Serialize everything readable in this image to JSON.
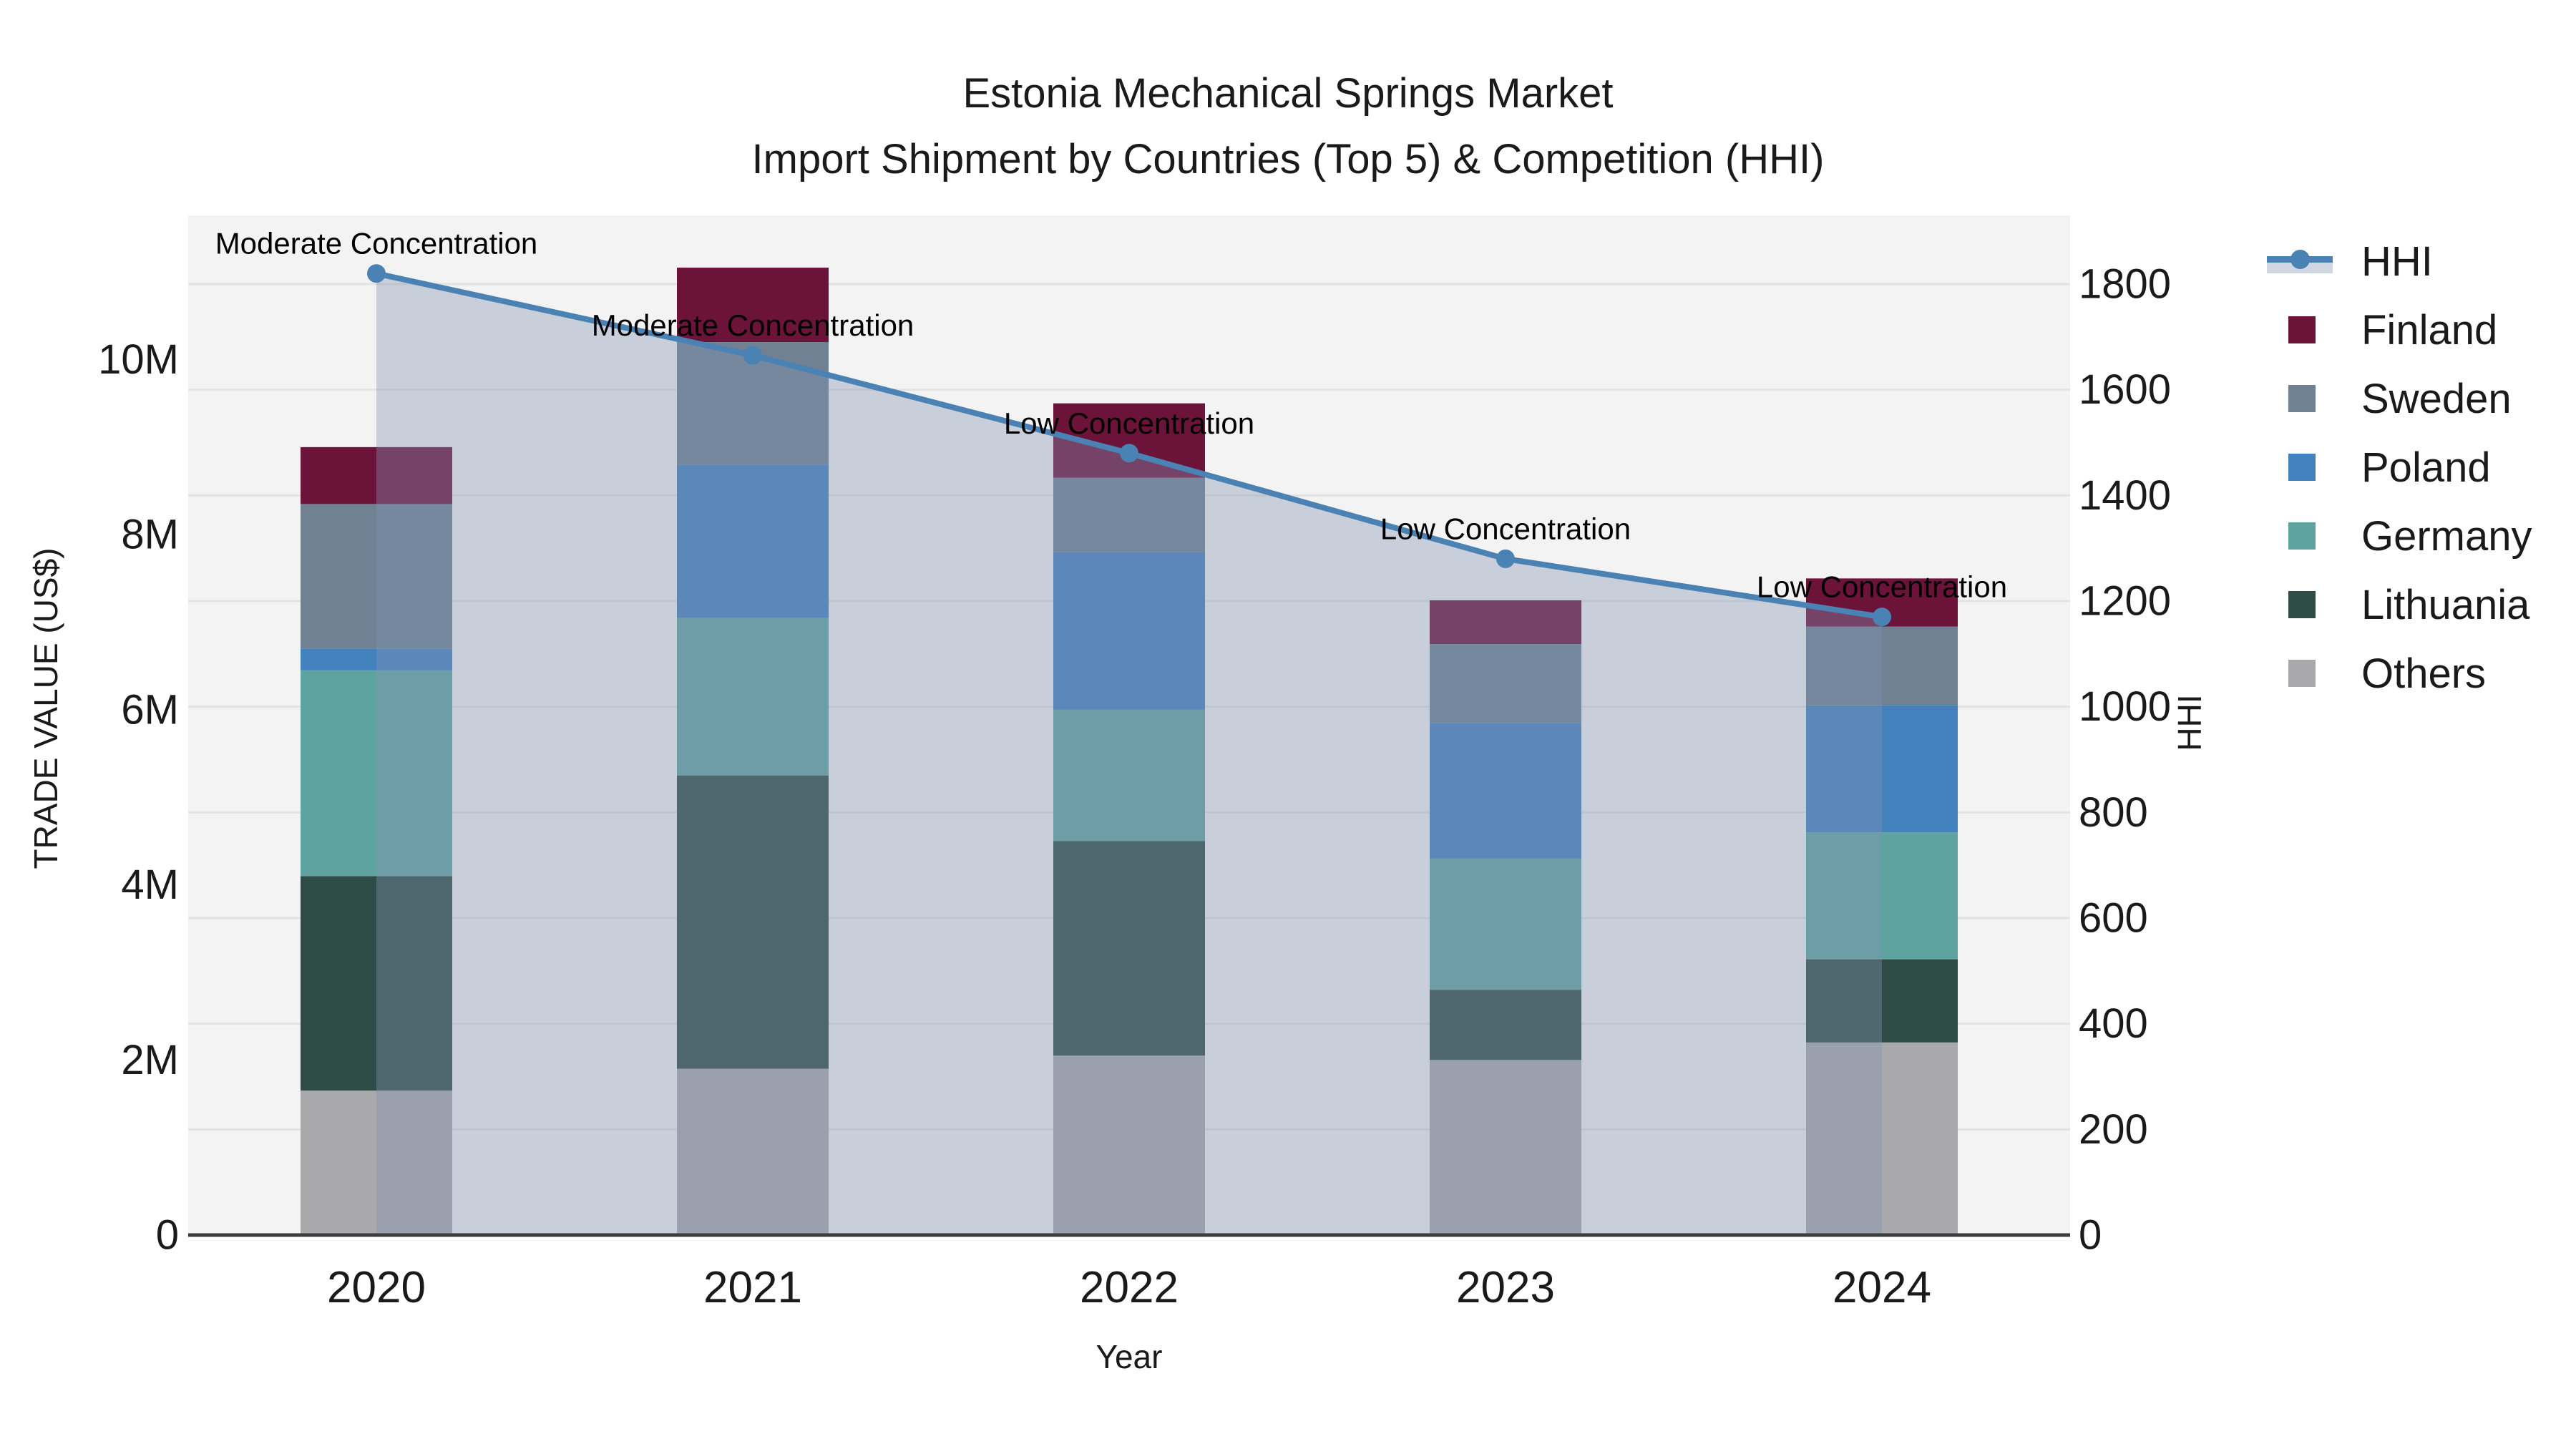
{
  "title": {
    "line1": "Estonia Mechanical Springs Market",
    "line2": "Import Shipment by Countries (Top 5) & Competition (HHI)"
  },
  "axes": {
    "x": {
      "title": "Year"
    },
    "y_left": {
      "title": "TRADE VALUE (US$)"
    },
    "y_right": {
      "title": "HHI"
    }
  },
  "colors": {
    "plot_background": "#f3f3f3",
    "gridline": "#e3e3e3",
    "axis_line": "#3d3d3d",
    "hhi_line": "#4a82b4",
    "hhi_area": "rgba(132,146,179,0.38)",
    "text": "#1a1a1a"
  },
  "legend": {
    "items": [
      {
        "label": "HHI",
        "type": "line",
        "color": "#4a82b4"
      },
      {
        "label": "Finland",
        "type": "swatch",
        "color": "#6b1339"
      },
      {
        "label": "Sweden",
        "type": "swatch",
        "color": "#6f8192"
      },
      {
        "label": "Poland",
        "type": "swatch",
        "color": "#4381bc"
      },
      {
        "label": "Germany",
        "type": "swatch",
        "color": "#5fa3a1"
      },
      {
        "label": "Lithuania",
        "type": "swatch",
        "color": "#2e4b45"
      },
      {
        "label": "Others",
        "type": "swatch",
        "color": "#a9a9ab"
      }
    ]
  },
  "chart_data": {
    "type": "bar",
    "stacked": true,
    "title": "Estonia Mechanical Springs Market — Import Shipment by Countries (Top 5) & Competition (HHI)",
    "xlabel": "Year",
    "ylabel_left": "TRADE VALUE (US$)",
    "ylabel_right": "HHI",
    "categories": [
      "2020",
      "2021",
      "2022",
      "2023",
      "2024"
    ],
    "unit": "million US$",
    "series": [
      {
        "name": "Others",
        "color": "#a9a9ab",
        "values": [
          1.65,
          1.9,
          2.05,
          2.0,
          2.2
        ]
      },
      {
        "name": "Lithuania",
        "color": "#2e4b45",
        "values": [
          2.45,
          3.35,
          2.45,
          0.8,
          0.95
        ]
      },
      {
        "name": "Germany",
        "color": "#5fa3a1",
        "values": [
          2.35,
          1.8,
          1.5,
          1.5,
          1.45
        ]
      },
      {
        "name": "Poland",
        "color": "#4381bc",
        "values": [
          0.25,
          1.75,
          1.8,
          1.55,
          1.45
        ]
      },
      {
        "name": "Sweden",
        "color": "#6f8192",
        "values": [
          1.65,
          1.4,
          0.85,
          0.9,
          0.9
        ]
      },
      {
        "name": "Finland",
        "color": "#6b1339",
        "values": [
          0.65,
          0.85,
          0.85,
          0.5,
          0.55
        ]
      }
    ],
    "bar_totals": [
      9.0,
      11.05,
      9.5,
      7.25,
      7.5
    ],
    "line_series": {
      "name": "HHI",
      "color": "#4a82b4",
      "area_color": "rgba(132,146,179,0.38)",
      "values": [
        1820,
        1665,
        1480,
        1280,
        1170
      ],
      "annotations": [
        "Moderate Concentration",
        "Moderate Concentration",
        "Low Concentration",
        "Low Concentration",
        "Low Concentration"
      ]
    },
    "y_left_axis": {
      "tick_labels": [
        "0",
        "2M",
        "4M",
        "6M",
        "8M",
        "10M"
      ],
      "tick_values": [
        0,
        2,
        4,
        6,
        8,
        10
      ],
      "range": [
        0,
        11.65
      ]
    },
    "y_right_axis": {
      "tick_labels": [
        "0",
        "200",
        "400",
        "600",
        "800",
        "1000",
        "1200",
        "1400",
        "1600",
        "1800"
      ],
      "tick_values": [
        0,
        200,
        400,
        600,
        800,
        1000,
        1200,
        1400,
        1600,
        1800
      ],
      "range": [
        0,
        1930
      ]
    },
    "grid": "horizontal-right-axis",
    "legend_position": "right"
  }
}
